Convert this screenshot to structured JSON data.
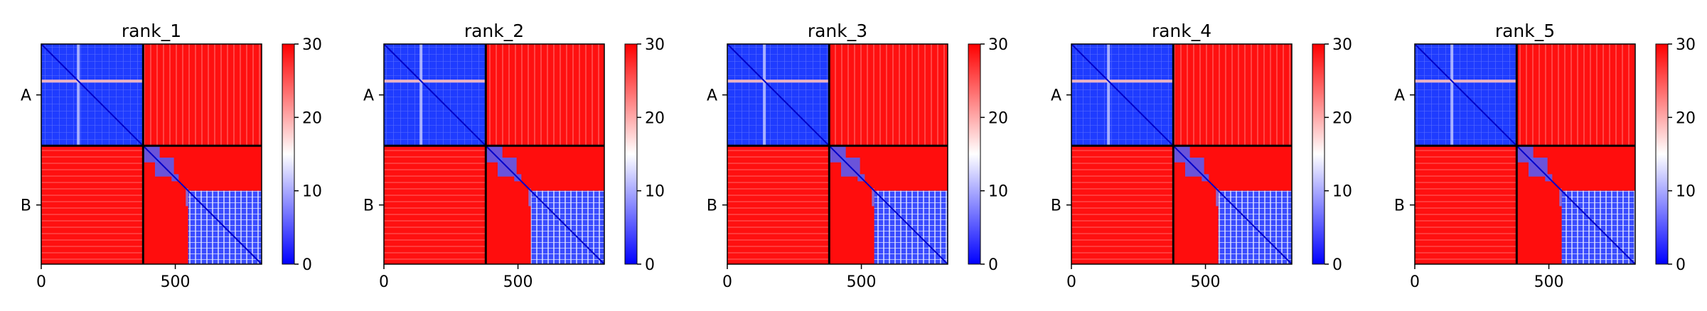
{
  "chart_data": {
    "type": "heatmap",
    "layout": "1x5 panels, each a pairwise distance matrix heatmap with its own colorbar",
    "x_ticks": [
      0,
      500
    ],
    "x_range": [
      0,
      822
    ],
    "chain_boundary": 380,
    "chains": [
      {
        "label": "A",
        "start": 0,
        "end": 380
      },
      {
        "label": "B",
        "start": 380,
        "end": 822
      }
    ],
    "colorbar": {
      "min": 0,
      "max": 30,
      "ticks": [
        0,
        10,
        20,
        30
      ],
      "colors": {
        "low": "#0000ff",
        "mid": "#ffffff",
        "high": "#ff0000"
      }
    },
    "panels": [
      {
        "title": "rank_1",
        "off_diagonal_AB": 30,
        "chain_A_internal": 2,
        "chain_B_domain_internal": 3
      },
      {
        "title": "rank_2",
        "off_diagonal_AB": 30,
        "chain_A_internal": 2,
        "chain_B_domain_internal": 3
      },
      {
        "title": "rank_3",
        "off_diagonal_AB": 30,
        "chain_A_internal": 2,
        "chain_B_domain_internal": 3
      },
      {
        "title": "rank_4",
        "off_diagonal_AB": 30,
        "chain_A_internal": 2,
        "chain_B_domain_internal": 3
      },
      {
        "title": "rank_5",
        "off_diagonal_AB": 30,
        "chain_A_internal": 2,
        "chain_B_domain_internal": 3
      }
    ]
  }
}
